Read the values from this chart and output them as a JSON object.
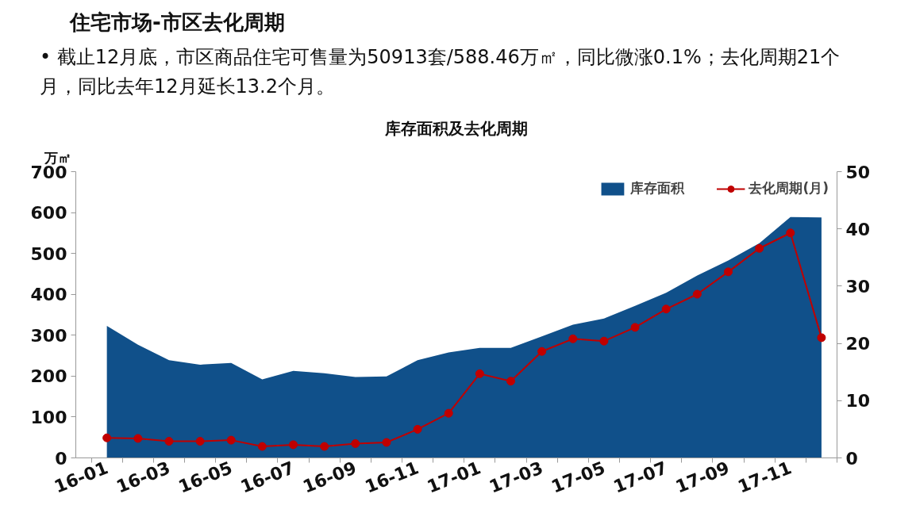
{
  "chart_data": {
    "type": "area",
    "title": "库存面积及去化周期",
    "ylabel": "万㎡",
    "annotations": [
      "住宅市场-市区去化周期",
      "•  截止12月底，市区商品住宅可售量为50913套/588.46万㎡，同比微涨0.1%；去化周期21个月，同比去年12月延长13.2个月。"
    ],
    "categories": [
      "16-01",
      null,
      "16-03",
      null,
      "16-05",
      null,
      "16-07",
      null,
      "16-09",
      null,
      "16-11",
      null,
      "17-01",
      null,
      "17-03",
      null,
      "17-05",
      null,
      "17-07",
      null,
      "17-09",
      null,
      "17-11",
      null
    ],
    "series": [
      {
        "name": "库存面积",
        "color": "#10508a",
        "values": [
          323,
          277,
          239,
          228,
          232,
          192,
          213,
          207,
          198,
          199,
          239,
          258,
          269,
          269,
          297,
          326,
          341,
          372,
          404,
          446,
          483,
          525,
          589,
          588
        ]
      },
      {
        "name": "去化周期(月)",
        "type": "line",
        "axis": "y2",
        "color": "#c00000",
        "marker": "circle",
        "values": [
          3.5,
          3.4,
          2.9,
          2.9,
          3.1,
          2.0,
          2.3,
          2.0,
          2.5,
          2.7,
          5.0,
          7.8,
          14.7,
          13.4,
          18.6,
          20.8,
          20.4,
          22.8,
          26.0,
          28.6,
          32.5,
          36.6,
          39.3,
          21
        ]
      }
    ],
    "ylim": [
      0,
      700
    ],
    "yticks": [
      0,
      100,
      200,
      300,
      400,
      500,
      600,
      700
    ],
    "y2lim": [
      0,
      50
    ],
    "y2ticks": [
      0,
      10,
      20,
      30,
      40,
      50
    ],
    "grid": false,
    "legend": "top right"
  }
}
